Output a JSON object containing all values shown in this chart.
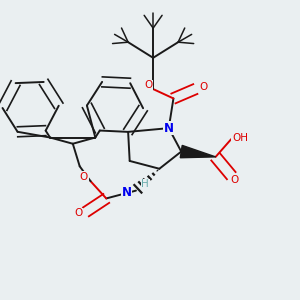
{
  "bg_color": "#eaeff1",
  "atom_colors": {
    "C": "#1a1a1a",
    "N": "#0000ee",
    "O": "#dd0000",
    "H": "#6aacac"
  },
  "bond_color": "#1a1a1a",
  "bond_width": 1.4
}
